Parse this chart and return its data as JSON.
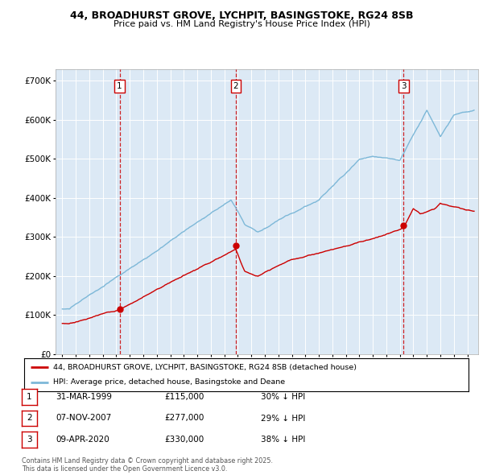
{
  "title_line1": "44, BROADHURST GROVE, LYCHPIT, BASINGSTOKE, RG24 8SB",
  "title_line2": "Price paid vs. HM Land Registry's House Price Index (HPI)",
  "ylim": [
    0,
    730000
  ],
  "xlim_year": [
    1994.5,
    2025.8
  ],
  "yticks": [
    0,
    100000,
    200000,
    300000,
    400000,
    500000,
    600000,
    700000
  ],
  "ytick_labels": [
    "£0",
    "£100K",
    "£200K",
    "£300K",
    "£400K",
    "£500K",
    "£600K",
    "£700K"
  ],
  "plot_bg_color": "#dce9f5",
  "grid_color": "#ffffff",
  "hpi_line_color": "#7db8d8",
  "price_line_color": "#cc0000",
  "marker_color": "#cc0000",
  "vline_color": "#cc0000",
  "sale_dates": [
    1999.247,
    2007.847,
    2020.273
  ],
  "sale_prices": [
    115000,
    277000,
    330000
  ],
  "sale_labels": [
    "1",
    "2",
    "3"
  ],
  "legend_price_label": "44, BROADHURST GROVE, LYCHPIT, BASINGSTOKE, RG24 8SB (detached house)",
  "legend_hpi_label": "HPI: Average price, detached house, Basingstoke and Deane",
  "table_rows": [
    [
      "1",
      "31-MAR-1999",
      "£115,000",
      "30% ↓ HPI"
    ],
    [
      "2",
      "07-NOV-2007",
      "£277,000",
      "29% ↓ HPI"
    ],
    [
      "3",
      "09-APR-2020",
      "£330,000",
      "38% ↓ HPI"
    ]
  ],
  "footer_text": "Contains HM Land Registry data © Crown copyright and database right 2025.\nThis data is licensed under the Open Government Licence v3.0."
}
